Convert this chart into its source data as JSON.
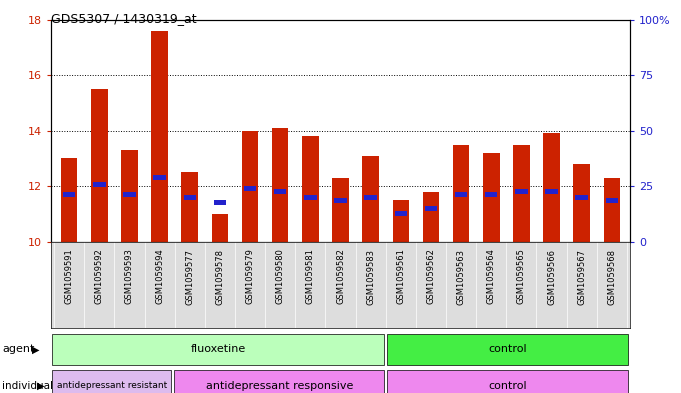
{
  "title": "GDS5307 / 1430319_at",
  "samples": [
    "GSM1059591",
    "GSM1059592",
    "GSM1059593",
    "GSM1059594",
    "GSM1059577",
    "GSM1059578",
    "GSM1059579",
    "GSM1059580",
    "GSM1059581",
    "GSM1059582",
    "GSM1059583",
    "GSM1059561",
    "GSM1059562",
    "GSM1059563",
    "GSM1059564",
    "GSM1059565",
    "GSM1059566",
    "GSM1059567",
    "GSM1059568"
  ],
  "bar_heights": [
    13.0,
    15.5,
    13.3,
    17.6,
    12.5,
    11.0,
    14.0,
    14.1,
    13.8,
    12.3,
    13.1,
    11.5,
    11.8,
    13.5,
    13.2,
    13.5,
    13.9,
    12.8,
    12.3
  ],
  "percentile_vals": [
    11.7,
    12.05,
    11.7,
    12.3,
    11.6,
    11.4,
    11.9,
    11.8,
    11.6,
    11.5,
    11.6,
    11.0,
    11.2,
    11.7,
    11.7,
    11.8,
    11.8,
    11.6,
    11.5
  ],
  "bar_color": "#cc2200",
  "percentile_color": "#2222cc",
  "ymin": 10,
  "ymax": 18,
  "yticks": [
    10,
    12,
    14,
    16,
    18
  ],
  "grid_vals": [
    12,
    14,
    16
  ],
  "right_yticks": [
    0,
    25,
    50,
    75,
    100
  ],
  "right_ylabels": [
    "0",
    "25",
    "50",
    "75",
    "100%"
  ],
  "agent_groups": [
    {
      "label": "fluoxetine",
      "start": 0,
      "end": 10,
      "color": "#bbffbb"
    },
    {
      "label": "control",
      "start": 11,
      "end": 18,
      "color": "#44ee44"
    }
  ],
  "individual_groups": [
    {
      "label": "antidepressant resistant",
      "start": 0,
      "end": 3,
      "color": "#ddbbee"
    },
    {
      "label": "antidepressant responsive",
      "start": 4,
      "end": 10,
      "color": "#ee88ee"
    },
    {
      "label": "control",
      "start": 11,
      "end": 18,
      "color": "#ee88ee"
    }
  ],
  "bar_width": 0.55,
  "bg_color": "#ffffff",
  "plot_bg": "#ffffff",
  "tick_bg": "#dddddd"
}
